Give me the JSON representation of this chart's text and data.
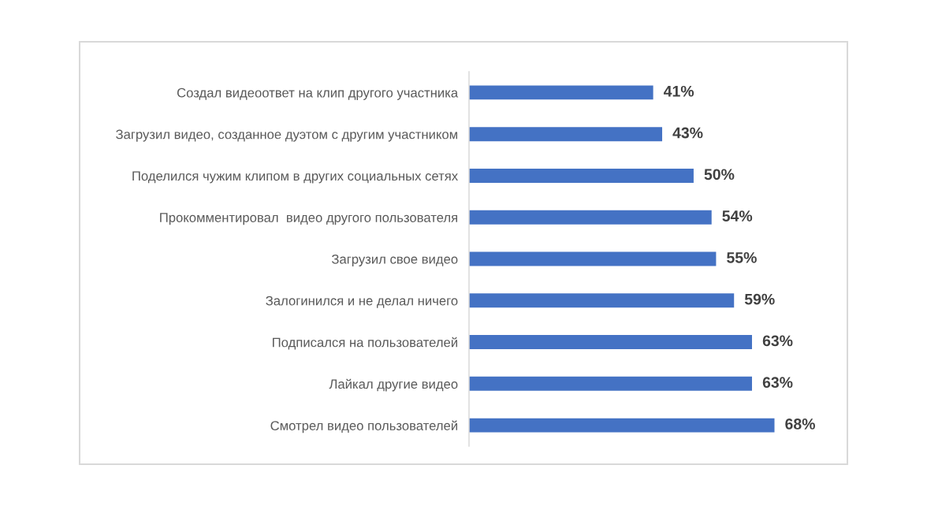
{
  "chart_data": {
    "type": "bar",
    "orientation": "horizontal",
    "categories": [
      "Создал видеоответ на клип другого участника",
      "Загрузил видео, созданное дуэтом с другим участником",
      "Поделился чужим клипом в других социальных сетях",
      "Прокомментировал  видео другого пользователя",
      "Загрузил свое видео",
      "Залогинился и не делал ничего",
      "Подписался на пользователей",
      "Лайкал другие видео",
      "Смотрел видео пользователей"
    ],
    "values": [
      41,
      43,
      50,
      54,
      55,
      59,
      63,
      63,
      68
    ],
    "value_labels": [
      "41%",
      "43%",
      "50%",
      "54%",
      "55%",
      "59%",
      "63%",
      "63%",
      "68%"
    ],
    "color": "#4472c4",
    "tick_labels": "y"
  }
}
